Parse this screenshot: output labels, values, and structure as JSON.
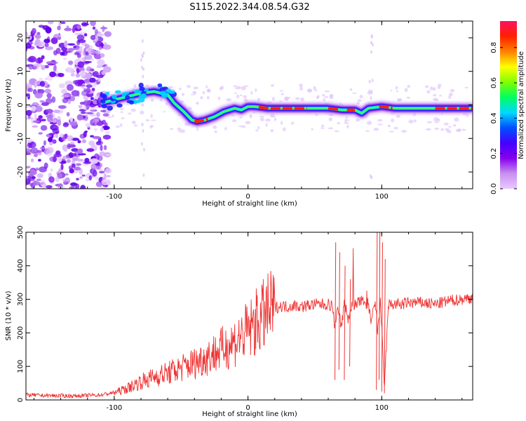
{
  "title": "S115.2022.344.08.54.G32",
  "chart_data": [
    {
      "type": "heatmap",
      "xlabel": "Height of straight line (km)",
      "ylabel": "Frequency (Hz)",
      "xlim": [
        -166,
        168
      ],
      "ylim": [
        -25,
        25
      ],
      "xticks": [
        -100,
        0,
        100
      ],
      "yticks": [
        -20,
        -10,
        0,
        10,
        20
      ],
      "grid": false,
      "colorbar": {
        "label": "Normalized spectral amplitude",
        "range": [
          0.0,
          0.95
        ],
        "ticks": [
          "0.0",
          "0.2",
          "0.4",
          "0.6",
          "0.8"
        ],
        "colors": [
          "#e8c8ff",
          "#c890f0",
          "#8800ee",
          "#4400ff",
          "#0050ff",
          "#00d8ff",
          "#00ff60",
          "#80ff00",
          "#ffff00",
          "#ff8000",
          "#ff2000",
          "#ff1060"
        ]
      },
      "ridge": {
        "x": [
          -110,
          -100,
          -90,
          -80,
          -70,
          -60,
          -55,
          -48,
          -42,
          -38,
          -32,
          -25,
          -18,
          -10,
          -5,
          0,
          5,
          15,
          30,
          45,
          60,
          70,
          80,
          85,
          90,
          100,
          110,
          130,
          150,
          168
        ],
        "y": [
          0.5,
          1.5,
          2.5,
          3.5,
          4.0,
          3.0,
          0.5,
          -2.0,
          -4.5,
          -5.0,
          -4.5,
          -3.5,
          -2.0,
          -1.0,
          -1.5,
          -0.5,
          -0.5,
          -1.0,
          -1.0,
          -1.0,
          -1.0,
          -1.5,
          -1.5,
          -2.5,
          -1.0,
          -0.5,
          -1.0,
          -1.0,
          -1.0,
          -1.0
        ]
      }
    },
    {
      "type": "line",
      "xlabel": "Height of straight line (km)",
      "ylabel": "SNR (10 * v/v)",
      "xlim": [
        -166,
        168
      ],
      "ylim": [
        0,
        500
      ],
      "xticks": [
        -100,
        0,
        100
      ],
      "yticks": [
        0,
        100,
        200,
        300,
        400,
        500
      ],
      "grid": false,
      "series": [
        {
          "color": "#ee3333",
          "x": [
            -166,
            -150,
            -130,
            -110,
            -100,
            -95,
            -90,
            -85,
            -80,
            -75,
            -70,
            -60,
            -50,
            -40,
            -30,
            -20,
            -10,
            -5,
            0,
            5,
            10,
            15,
            20,
            25,
            30,
            35,
            40,
            45,
            50,
            55,
            60,
            63,
            65,
            67,
            70,
            72,
            75,
            78,
            80,
            85,
            90,
            92,
            95,
            97,
            99,
            100,
            102,
            105,
            110,
            115,
            120,
            130,
            140,
            150,
            160,
            168
          ],
          "y": [
            15,
            13,
            12,
            15,
            22,
            28,
            35,
            45,
            55,
            60,
            70,
            80,
            95,
            110,
            130,
            150,
            175,
            190,
            205,
            225,
            245,
            262,
            275,
            280,
            278,
            282,
            278,
            282,
            285,
            285,
            285,
            280,
            220,
            285,
            215,
            290,
            240,
            290,
            285,
            295,
            285,
            230,
            290,
            200,
            300,
            210,
            40,
            285,
            285,
            285,
            290,
            290,
            285,
            295,
            300,
            305
          ]
        }
      ]
    }
  ]
}
